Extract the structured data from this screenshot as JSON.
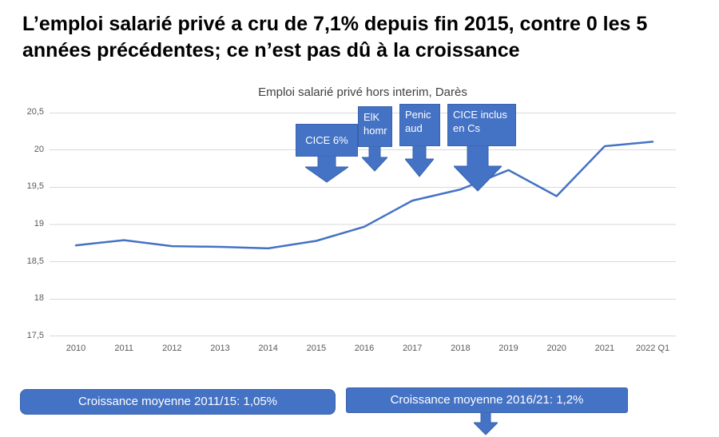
{
  "header": {
    "title": "L’emploi salarié privé a cru de 7,1% depuis fin 2015, contre 0 les 5 années précédentes; ce n’est pas dû à la croissance"
  },
  "chart_data": {
    "type": "line",
    "title": "Emploi salarié privé hors interim, Darès",
    "categories": [
      "2010",
      "2011",
      "2012",
      "2013",
      "2014",
      "2015",
      "2016",
      "2017",
      "2018",
      "2019",
      "2020",
      "2021",
      "2022 Q1"
    ],
    "values": [
      18.72,
      18.79,
      18.71,
      18.7,
      18.68,
      18.78,
      18.97,
      19.32,
      19.47,
      19.73,
      19.38,
      20.05,
      20.11
    ],
    "ylim": [
      17.5,
      20.5
    ],
    "ytick_step": 0.5,
    "yticks": [
      "20,5",
      "20",
      "19,5",
      "19",
      "18,5",
      "18",
      "17,5"
    ],
    "grid": true,
    "legend_position": "none",
    "annotations": [
      {
        "label": "CICE 6%",
        "x": "2015"
      },
      {
        "label": "ElK homr",
        "x": "2016"
      },
      {
        "label": "Penic aud",
        "x": "2017"
      },
      {
        "label": "CICE inclus en Cs",
        "x": "2018"
      }
    ]
  },
  "footer": {
    "banner_left": "Croissance moyenne 2011/15: 1,05%",
    "banner_right": "Croissance moyenne 2016/21: 1,2%"
  },
  "colors": {
    "accent_blue": "#4472C4",
    "accent_border": "#3A62AD",
    "gridline": "#D9D9D9",
    "tick_text": "#595959"
  }
}
